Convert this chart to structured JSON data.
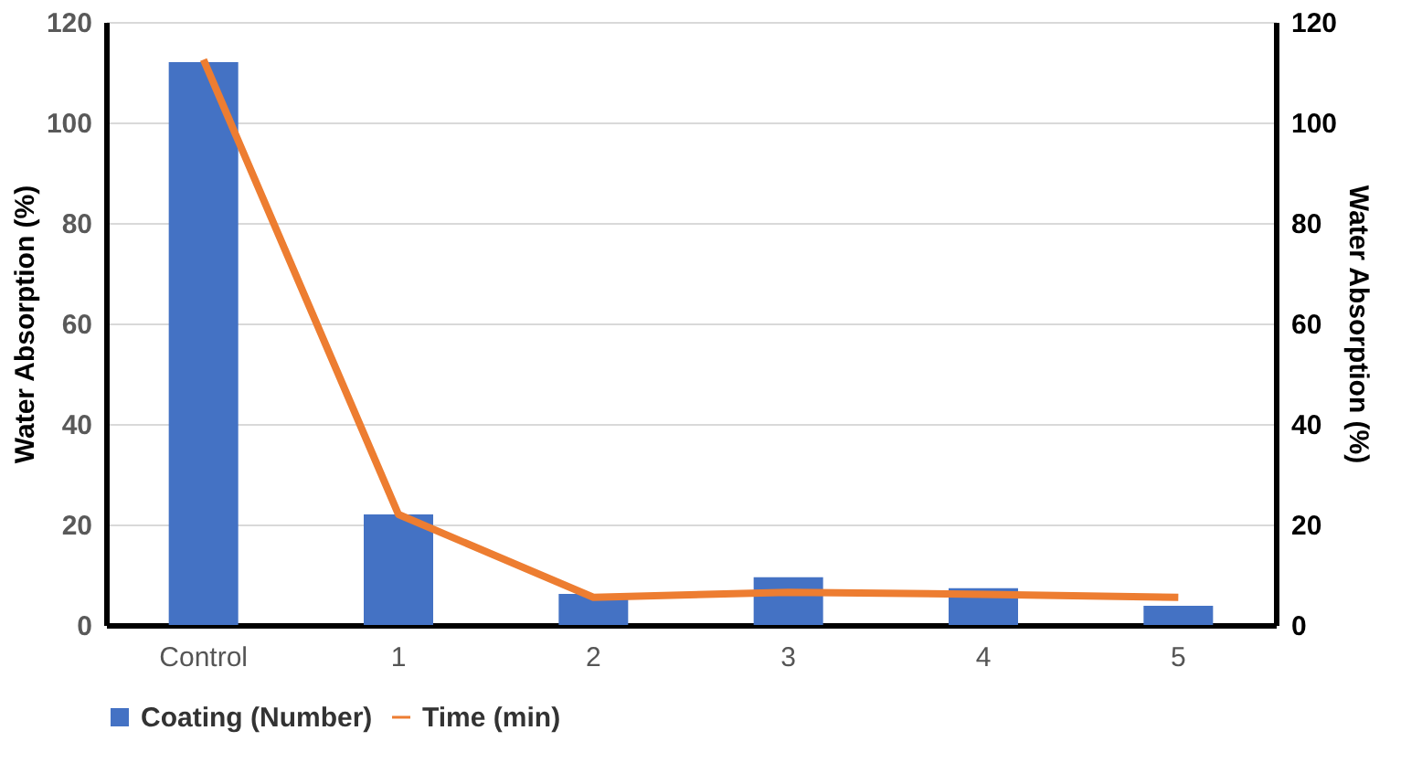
{
  "chart_data": {
    "type": "bar",
    "categories": [
      "Control",
      "1",
      "2",
      "3",
      "4",
      "5"
    ],
    "series": [
      {
        "name": "Coating (Number)",
        "color": "#4472c4",
        "values": [
          112,
          22,
          6.2,
          9.5,
          7.3,
          3.8
        ]
      },
      {
        "name": "Time (min)",
        "type": "line",
        "axis": "y2",
        "color": "#ed7d31",
        "values": [
          112.5,
          22,
          5.5,
          6.5,
          6.1,
          5.5
        ]
      }
    ],
    "ylabel": "Water Absorption (%)",
    "y2label": "Water Absorption (%)",
    "ylim": [
      0,
      120
    ],
    "yticks": [
      0,
      20,
      40,
      60,
      80,
      100,
      120
    ],
    "y2lim": [
      0,
      120
    ],
    "y2ticks": [
      0,
      20,
      40,
      60,
      80,
      100,
      120
    ],
    "grid": "y",
    "legend": "bottom",
    "marker": "none",
    "line_style": "solid"
  }
}
